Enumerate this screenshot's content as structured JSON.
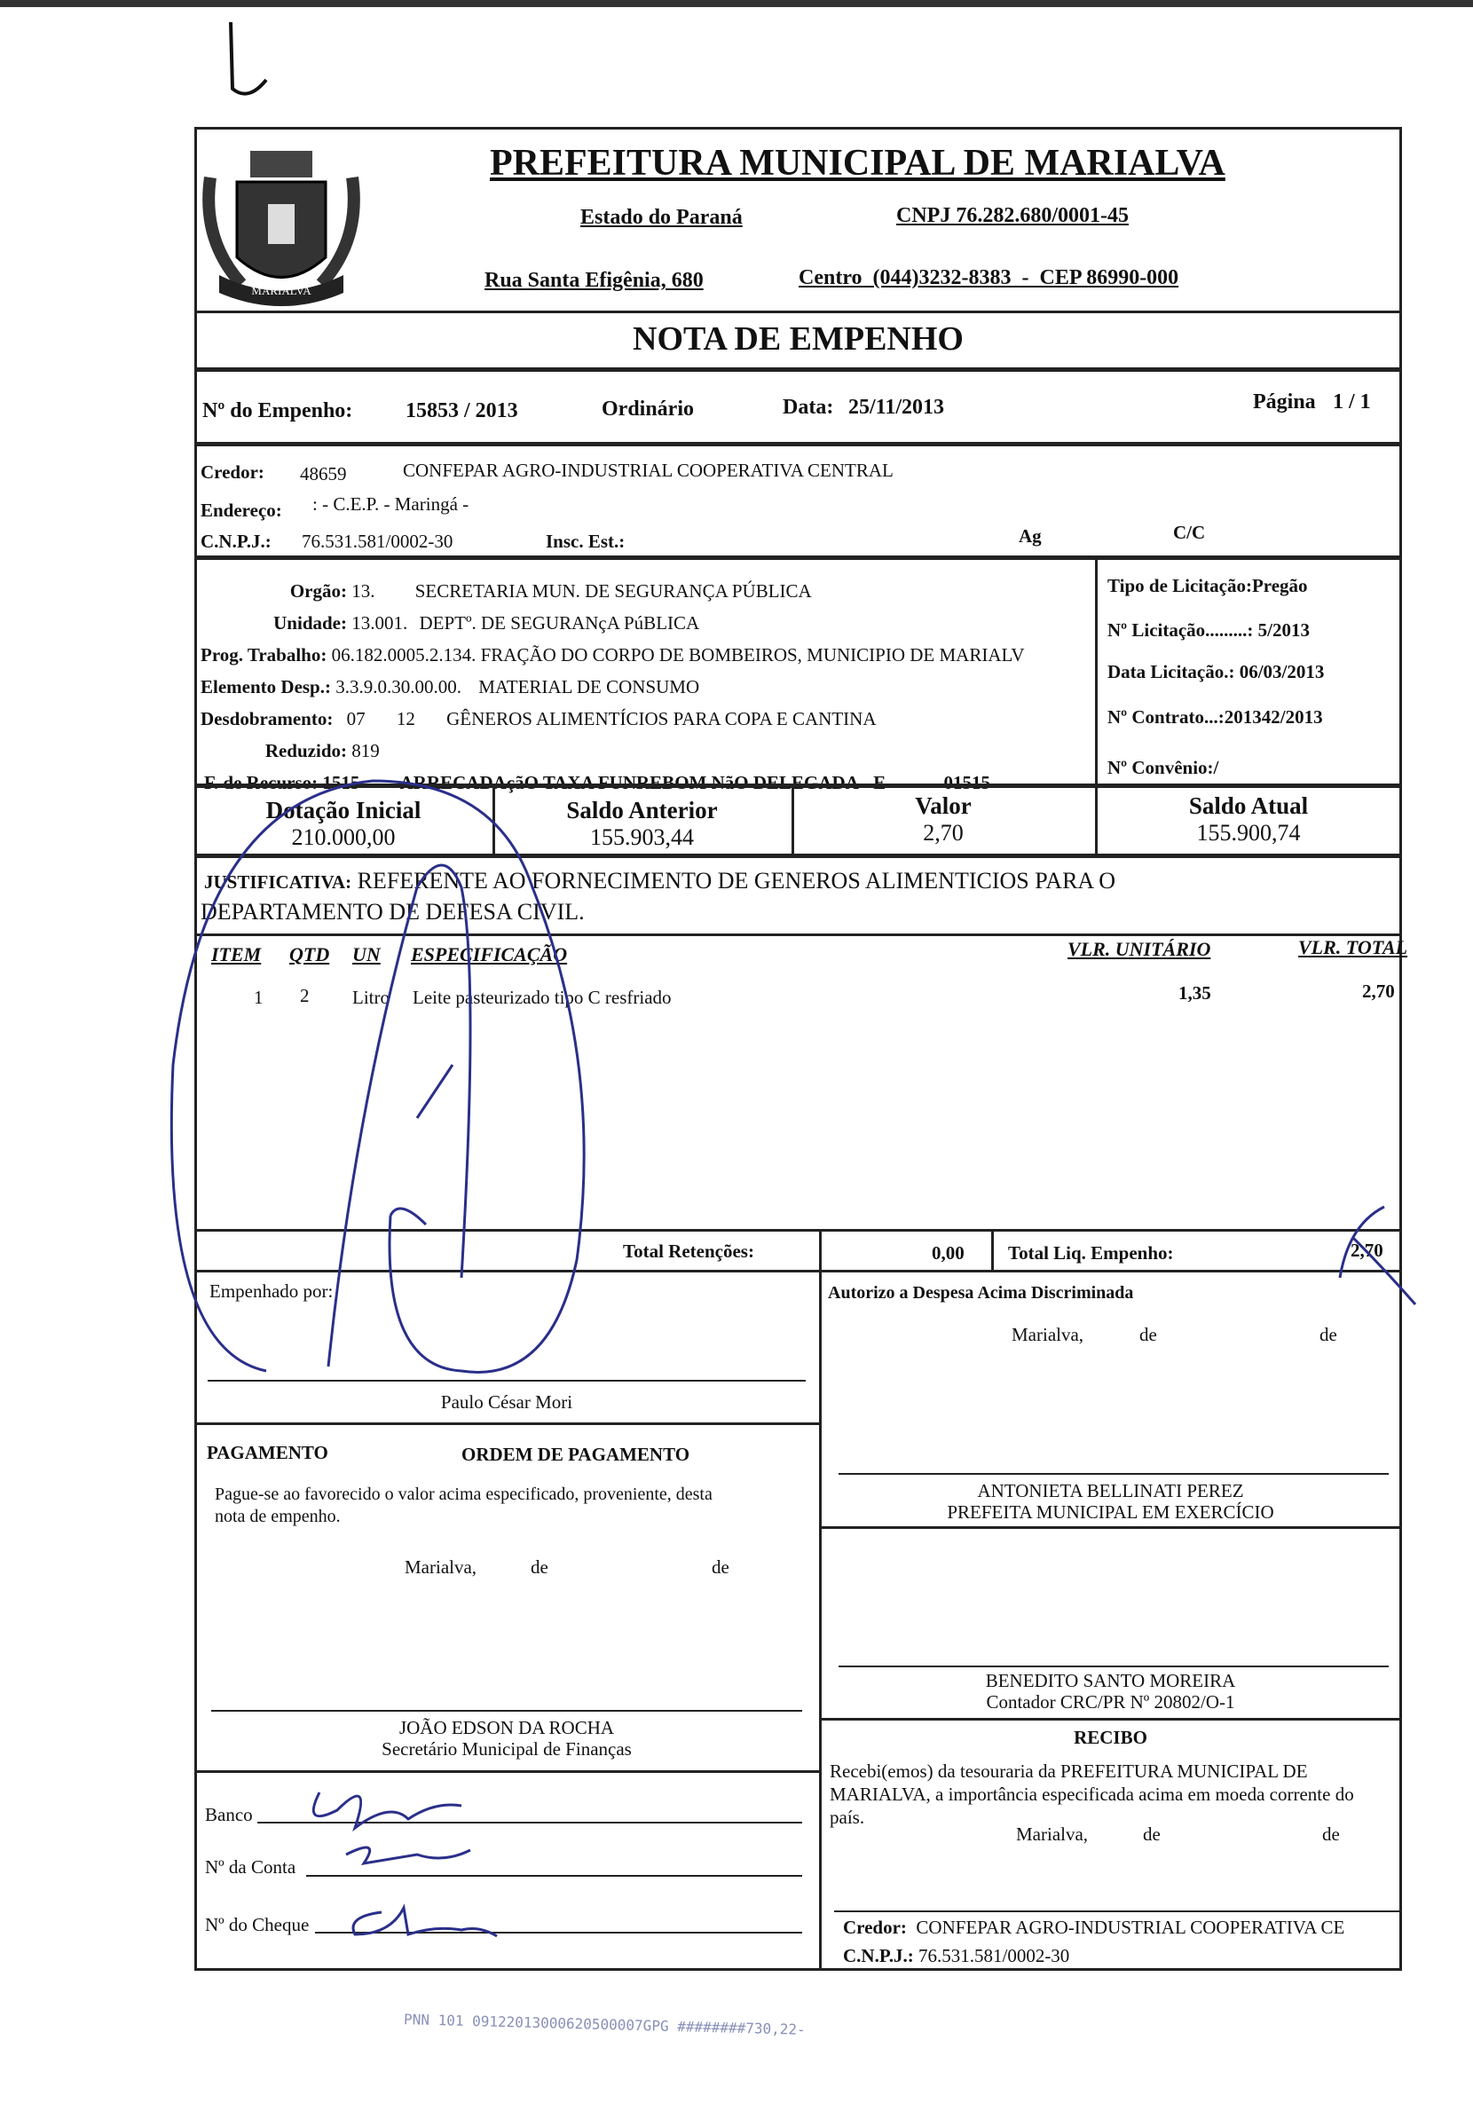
{
  "header": {
    "title": "PREFEITURA MUNICIPAL DE MARIALVA",
    "state": "Estado do Paraná",
    "cnpj": "CNPJ 76.282.680/0001-45",
    "address": "Rua Santa Efigênia, 680",
    "district_phone_cep": "Centro  (044)3232-8383  -  CEP 86990-000",
    "logo_text": "MARIALVA"
  },
  "doc_title": "NOTA  DE  EMPENHO",
  "empenho": {
    "number_label": "Nº do Empenho:",
    "number": "15853 / 2013",
    "type": "Ordinário",
    "date_label": "Data:",
    "date": "25/11/2013",
    "page_label": "Página",
    "page": "1 / 1"
  },
  "credor": {
    "credor_label": "Credor:",
    "credor_code": "48659",
    "credor_name": "CONFEPAR AGRO-INDUSTRIAL COOPERATIVA CENTRAL",
    "endereco_label": "Endereço:",
    "endereco": ": - C.E.P.  - Maringá -",
    "cnpj_label": "C.N.P.J.:",
    "cnpj": "76.531.581/0002-30",
    "insc_label": "Insc. Est.:",
    "ag_label": "Ag",
    "cc_label": "C/C"
  },
  "dotacao": {
    "orgao_label": "Orgão:",
    "orgao_code": "13.",
    "orgao": "SECRETARIA MUN. DE SEGURANÇA PÚBLICA",
    "unidade_label": "Unidade:",
    "unidade_code": "13.001.",
    "unidade": "DEPTº. DE SEGURANçA PúBLICA",
    "prog_label": "Prog. Trabalho:",
    "prog_code": "06.182.0005.2.134.",
    "prog": "FRAÇÃO DO CORPO DE BOMBEIROS, MUNICIPIO DE MARIALV",
    "elemento_label": "Elemento Desp.:",
    "elemento_code": "3.3.9.0.30.00.00.",
    "elemento": "MATERIAL DE CONSUMO",
    "desd_label": "Desdobramento:",
    "desd_code1": "07",
    "desd_code2": "12",
    "desd": "GÊNEROS ALIMENTÍCIOS PARA COPA E CANTINA",
    "reduzido_label": "Reduzido:",
    "reduzido": "819",
    "recurso_label": "F. de Recurso:",
    "recurso_code": "1515",
    "recurso": "ARRECADAçãO TAXA FUNREBOM NãO DELEGADA - E",
    "recurso_code2": "01515"
  },
  "licitacao": {
    "tipo": "Tipo de Licitação:Pregão",
    "numero": "Nº Licitação.........: 5/2013",
    "data": "Data Licitação.: 06/03/2013",
    "contrato": "Nº Contrato...:201342/2013",
    "convenio": "Nº Convênio:/"
  },
  "saldos": [
    {
      "label": "Dotação Inicial",
      "value": "210.000,00"
    },
    {
      "label": "Saldo Anterior",
      "value": "155.903,44"
    },
    {
      "label": "Valor",
      "value": "2,70"
    },
    {
      "label": "Saldo Atual",
      "value": "155.900,74"
    }
  ],
  "justificativa": {
    "label": "JUSTIFICATIVA:",
    "line1": "REFERENTE AO FORNECIMENTO DE GENEROS ALIMENTICIOS PARA O",
    "line2": "DEPARTAMENTO DE DEFESA CIVIL."
  },
  "items": {
    "headers": {
      "item": "ITEM",
      "qtd": "QTD",
      "un": "UN",
      "spec": "ESPECIFICAÇÃO",
      "unit": "VLR. UNITÁRIO",
      "total": "VLR. TOTAL"
    },
    "rows": [
      {
        "item": "1",
        "qtd": "2",
        "un": "Litro",
        "spec": "Leite pasteurizado tipo C resfriado",
        "unit": "1,35",
        "total": "2,70"
      }
    ]
  },
  "totals": {
    "retencoes_label": "Total Retenções:",
    "retencoes": "0,00",
    "liq_label": "Total Liq. Empenho:",
    "liq": "2,70"
  },
  "empenhado": {
    "label": "Empenhado por:",
    "name": "Paulo César Mori"
  },
  "autorizo": {
    "label": "Autorizo a Despesa Acima Discriminada",
    "place": "Marialva,",
    "de1": "de",
    "de2": "de",
    "name": "ANTONIETA BELLINATI PEREZ",
    "role": "PREFEITA MUNICIPAL EM EXERCÍCIO"
  },
  "pagamento": {
    "label": "PAGAMENTO",
    "ordem": "ORDEM DE PAGAMENTO",
    "text1": "Pague-se ao favorecido o valor acima especificado, proveniente, desta",
    "text2": "nota de empenho.",
    "place": "Marialva,",
    "de1": "de",
    "de2": "de",
    "name": "JOÃO EDSON DA ROCHA",
    "role": "Secretário Municipal de Finanças"
  },
  "contador": {
    "name": "BENEDITO SANTO MOREIRA",
    "role": "Contador CRC/PR Nº 20802/O-1"
  },
  "recibo": {
    "label": "RECIBO",
    "text1": "Recebi(emos)  da  tesouraria  da  PREFEITURA  MUNICIPAL  DE",
    "text2": "MARIALVA, a importância especificada acima em moeda corrente do",
    "text3": "país.",
    "place": "Marialva,",
    "de1": "de",
    "de2": "de",
    "credor_label": "Credor:",
    "credor": "CONFEPAR AGRO-INDUSTRIAL COOPERATIVA CE",
    "cnpj_label": "C.N.P.J.:",
    "cnpj": "76.531.581/0002-30"
  },
  "banco": {
    "banco_label": "Banco",
    "conta_label": "Nº da Conta",
    "cheque_label": "Nº do Cheque"
  },
  "stamp": "PNN 101 09122013000620500007GPG ########730,22-"
}
